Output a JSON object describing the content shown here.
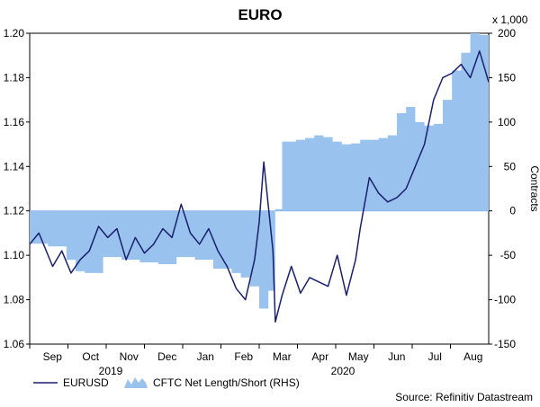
{
  "chart_data": {
    "type": "line+area",
    "title": "EURO",
    "left_axis": {
      "range": [
        1.06,
        1.2
      ],
      "ticks": [
        "1.20",
        "1.18",
        "1.16",
        "1.14",
        "1.12",
        "1.10",
        "1.08",
        "1.06"
      ]
    },
    "right_axis": {
      "unit_label": "x 1,000",
      "label": "Contracts",
      "range": [
        -150,
        200
      ],
      "ticks": [
        "200",
        "150",
        "100",
        "50",
        "0",
        "-50",
        "-100",
        "-150"
      ]
    },
    "x_axis": {
      "months": [
        "Sep",
        "Oct",
        "Nov",
        "Dec",
        "Jan",
        "Feb",
        "Mar",
        "Apr",
        "May",
        "Jun",
        "Jul",
        "Aug"
      ],
      "years": [
        "2019",
        "2020"
      ]
    },
    "legend": [
      "EURUSD",
      "CFTC Net Length/Short (RHS)"
    ],
    "source": "Source: Refinitiv Datastream",
    "series_eurusd": {
      "name": "EURUSD",
      "t": [
        0.0,
        0.02,
        0.04,
        0.05,
        0.07,
        0.09,
        0.11,
        0.13,
        0.15,
        0.17,
        0.19,
        0.21,
        0.23,
        0.25,
        0.27,
        0.29,
        0.31,
        0.33,
        0.35,
        0.37,
        0.39,
        0.41,
        0.43,
        0.45,
        0.47,
        0.49,
        0.5,
        0.51,
        0.52,
        0.53,
        0.535,
        0.55,
        0.57,
        0.59,
        0.61,
        0.63,
        0.65,
        0.67,
        0.69,
        0.71,
        0.72,
        0.74,
        0.76,
        0.78,
        0.8,
        0.82,
        0.84,
        0.86,
        0.88,
        0.9,
        0.92,
        0.94,
        0.96,
        0.98,
        1.0
      ],
      "values": [
        1.105,
        1.11,
        1.1,
        1.095,
        1.102,
        1.092,
        1.098,
        1.102,
        1.113,
        1.108,
        1.112,
        1.098,
        1.108,
        1.101,
        1.105,
        1.112,
        1.108,
        1.123,
        1.11,
        1.105,
        1.112,
        1.102,
        1.095,
        1.085,
        1.08,
        1.098,
        1.115,
        1.142,
        1.122,
        1.102,
        1.07,
        1.082,
        1.095,
        1.083,
        1.09,
        1.088,
        1.086,
        1.1,
        1.082,
        1.098,
        1.112,
        1.135,
        1.128,
        1.124,
        1.126,
        1.13,
        1.14,
        1.15,
        1.17,
        1.18,
        1.182,
        1.186,
        1.18,
        1.192,
        1.178
      ]
    },
    "series_cftc": {
      "name": "CFTC Net Length/Short (RHS)",
      "t": [
        0.0,
        0.04,
        0.08,
        0.1,
        0.12,
        0.16,
        0.2,
        0.24,
        0.28,
        0.32,
        0.36,
        0.4,
        0.44,
        0.46,
        0.48,
        0.5,
        0.52,
        0.535,
        0.55,
        0.58,
        0.6,
        0.62,
        0.64,
        0.66,
        0.68,
        0.7,
        0.72,
        0.74,
        0.76,
        0.78,
        0.8,
        0.82,
        0.84,
        0.86,
        0.88,
        0.9,
        0.92,
        0.94,
        0.96,
        0.98,
        1.0
      ],
      "values": [
        -37,
        -40,
        -55,
        -68,
        -70,
        -52,
        -55,
        -58,
        -60,
        -52,
        -55,
        -65,
        -70,
        -75,
        -85,
        -110,
        -90,
        2,
        78,
        80,
        82,
        85,
        83,
        78,
        75,
        76,
        80,
        80,
        82,
        85,
        110,
        117,
        100,
        96,
        98,
        125,
        158,
        178,
        200,
        198,
        195
      ]
    }
  }
}
